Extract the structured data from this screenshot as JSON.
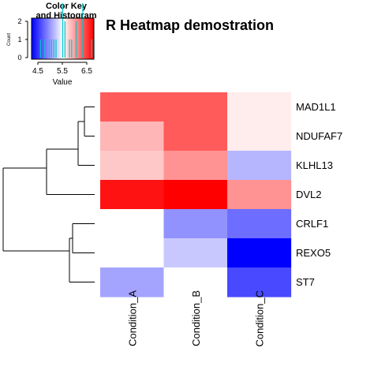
{
  "chart_data": {
    "type": "heatmap",
    "title": "R Heatmap demostration",
    "rows": [
      "MAD1L1",
      "NDUFAF7",
      "KLHL13",
      "DVL2",
      "CRLF1",
      "REXO5",
      "ST7"
    ],
    "columns": [
      "Condition_A",
      "Condition_B",
      "Condition_C"
    ],
    "values": [
      [
        6.4,
        6.4,
        5.6
      ],
      [
        5.9,
        6.4,
        5.6
      ],
      [
        5.8,
        6.1,
        5.1
      ],
      [
        6.8,
        6.9,
        6.1
      ],
      [
        5.5,
        4.9,
        4.7
      ],
      [
        5.5,
        5.2,
        4.1
      ],
      [
        5.0,
        5.5,
        4.5
      ]
    ],
    "color_scale": {
      "min": 4.1,
      "mid": 5.5,
      "max": 6.9,
      "low": "#0000ff",
      "middle": "#ffffff",
      "high": "#ff0000"
    },
    "color_key": {
      "title_line1": "Color Key",
      "title_line2": "and Histogram",
      "ylabel": "Count",
      "xlabel": "Value",
      "xticks": [
        "4.5",
        "5.5",
        "6.5"
      ],
      "yticks": [
        "0",
        "1",
        "2"
      ],
      "histogram_color": "#00c8c8"
    },
    "row_dendrogram": true
  }
}
